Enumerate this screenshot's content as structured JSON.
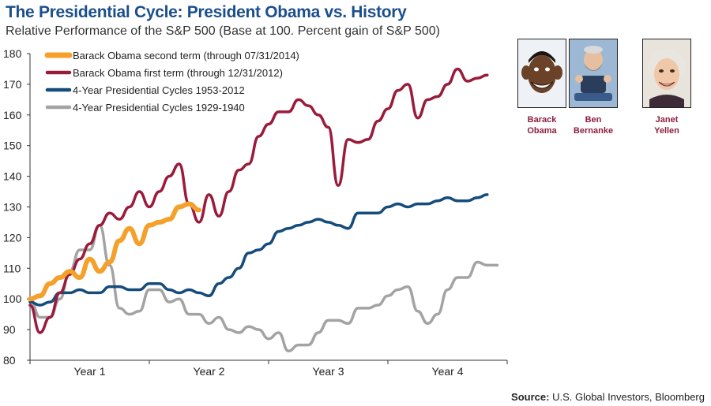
{
  "title": "The Presidential Cycle: President Obama vs. History",
  "subtitle": "Relative Performance of the S&P 500 (Base at 100. Percent gain of S&P 500)",
  "source": {
    "label": "Source:",
    "text": "U.S. Global Investors, Bloomberg"
  },
  "portraits": [
    {
      "name_line1": "Barack",
      "name_line2": "Obama",
      "icon": "obama-caricature"
    },
    {
      "name_line1": "Ben",
      "name_line2": "Bernanke",
      "icon": "bernanke-caricature"
    },
    {
      "name_line1": "Janet",
      "name_line2": "Yellen",
      "icon": "yellen-caricature"
    }
  ],
  "chart_data": {
    "type": "line",
    "title": "The Presidential Cycle: President Obama vs. History",
    "ylim": [
      80,
      180
    ],
    "yticks": [
      80,
      90,
      100,
      110,
      120,
      130,
      140,
      150,
      160,
      170,
      180
    ],
    "xlim": [
      0,
      48
    ],
    "x_category_labels": [
      "Year 1",
      "Year 2",
      "Year 3",
      "Year 4"
    ],
    "x_category_centers": [
      6,
      18,
      30,
      42
    ],
    "x_tick_positions": [
      0,
      12,
      24,
      36,
      48
    ],
    "legend_position": "top-left",
    "grid": false,
    "series": [
      {
        "name": "Barack Obama second term (through 07/31/2014)",
        "color": "#f5a02a",
        "width": 6,
        "x": [
          0,
          1,
          2,
          3,
          4,
          5,
          6,
          7,
          8,
          9,
          10,
          11,
          12,
          13,
          14,
          15,
          16,
          17,
          18
        ],
        "y": [
          100,
          101,
          105,
          107,
          109,
          107,
          113,
          109,
          112,
          119,
          123,
          118,
          124,
          125,
          126,
          130,
          131,
          129,
          null
        ]
      },
      {
        "name": "Barack Obama first term (through 12/31/2012)",
        "color": "#9a1b3c",
        "width": 3.5,
        "x": [
          0,
          1,
          2,
          3,
          4,
          5,
          6,
          7,
          8,
          9,
          10,
          11,
          12,
          13,
          14,
          15,
          16,
          17,
          18,
          19,
          20,
          21,
          22,
          23,
          24,
          25,
          26,
          27,
          28,
          29,
          30,
          31,
          32,
          33,
          34,
          35,
          36,
          37,
          38,
          39,
          40,
          41,
          42,
          43,
          44,
          45,
          46,
          47,
          48
        ],
        "y": [
          98,
          89,
          94,
          102,
          108,
          113,
          118,
          124,
          128,
          126,
          130,
          135,
          130,
          135,
          140,
          144,
          131,
          125,
          134,
          127,
          135,
          142,
          144,
          153,
          157,
          161,
          161,
          165,
          163,
          160,
          156,
          137,
          152,
          151,
          152,
          158,
          162,
          168,
          170,
          159,
          165,
          166,
          170,
          175,
          171,
          172,
          173,
          null,
          null
        ]
      },
      {
        "name": "4-Year Presidential Cycles 1953-2012",
        "color": "#154c7c",
        "width": 3.5,
        "x": [
          0,
          1,
          2,
          3,
          4,
          5,
          6,
          7,
          8,
          9,
          10,
          11,
          12,
          13,
          14,
          15,
          16,
          17,
          18,
          19,
          20,
          21,
          22,
          23,
          24,
          25,
          26,
          27,
          28,
          29,
          30,
          31,
          32,
          33,
          34,
          35,
          36,
          37,
          38,
          39,
          40,
          41,
          42,
          43,
          44,
          45,
          46,
          47,
          48
        ],
        "y": [
          99,
          98,
          99,
          102,
          102,
          103,
          102,
          102,
          104,
          104,
          103,
          103,
          105,
          105,
          103,
          102,
          103,
          102,
          101,
          105,
          107,
          110,
          115,
          116,
          118,
          122,
          123,
          124,
          125,
          126,
          125,
          124,
          123,
          128,
          128,
          128,
          130,
          131,
          130,
          131,
          131,
          132,
          133,
          132,
          132,
          133,
          134,
          null,
          null
        ]
      },
      {
        "name": "4-Year Presidential Cycles 1929-1940",
        "color": "#a3a3a3",
        "width": 3.5,
        "x": [
          0,
          1,
          2,
          3,
          4,
          5,
          6,
          7,
          8,
          9,
          10,
          11,
          12,
          13,
          14,
          15,
          16,
          17,
          18,
          19,
          20,
          21,
          22,
          23,
          24,
          25,
          26,
          27,
          28,
          29,
          30,
          31,
          32,
          33,
          34,
          35,
          36,
          37,
          38,
          39,
          40,
          41,
          42,
          43,
          44,
          45,
          46,
          47,
          48
        ],
        "y": [
          100,
          94,
          94,
          100,
          109,
          116,
          116,
          124,
          111,
          97,
          95,
          96,
          103,
          103,
          99,
          100,
          95,
          95,
          92,
          94,
          90,
          89,
          91,
          90,
          87,
          89,
          83,
          85,
          85,
          89,
          93,
          93,
          92,
          97,
          97,
          98,
          101,
          103,
          104,
          96,
          92,
          95,
          103,
          107,
          107,
          112,
          111,
          111,
          null
        ]
      }
    ]
  }
}
